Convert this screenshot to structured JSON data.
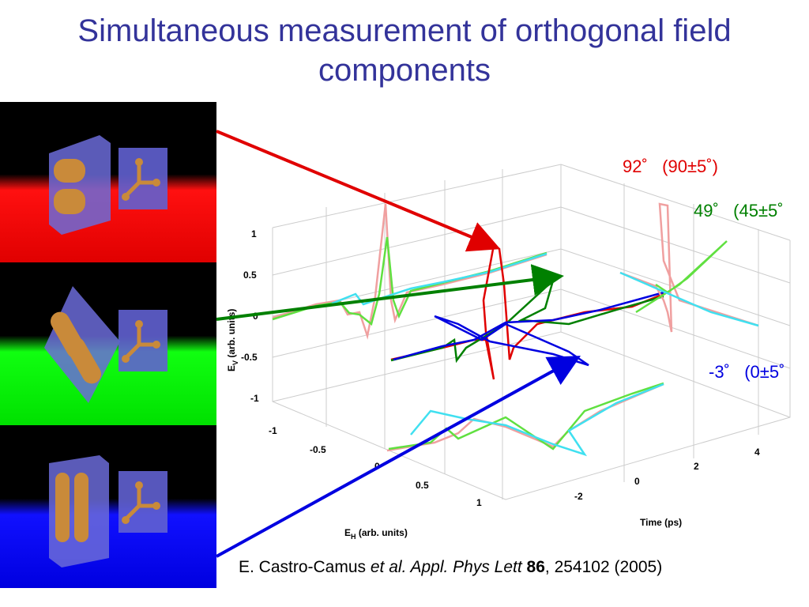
{
  "slide": {
    "title_line1": "Simultaneous measurement of orthogonal field",
    "title_line2": "components"
  },
  "annotations": {
    "red_measured": "92˚",
    "red_expected": "(90±5˚)",
    "green_measured": "49˚",
    "green_expected": "(45±5˚",
    "blue_measured": "-3˚",
    "blue_expected": "(0±5˚"
  },
  "plot": {
    "ylabel_main": "E",
    "ylabel_sub": "V",
    "ylabel_rest": " (arb. units)",
    "xlabel_main": "E",
    "xlabel_sub": "H",
    "xlabel_rest": " (arb. units)",
    "tlabel": "Time (ps)",
    "v_ticks": [
      "1",
      "0.5",
      "0",
      "-0.5",
      "-1"
    ],
    "h_ticks": [
      "-1",
      "-0.5",
      "0",
      "0.5",
      "1"
    ],
    "t_ticks": [
      "-2",
      "0",
      "2",
      "4"
    ]
  },
  "citation": {
    "author": "E. Castro-Camus ",
    "journal": "et al. Appl. Phys Lett ",
    "volume": "86",
    "rest": ", 254102 (2005)"
  },
  "colors": {
    "title": "#33339a",
    "red": "#e00000",
    "green": "#008000",
    "blue": "#0000e0",
    "trace_pink": "#f0a0a0",
    "trace_lightgreen": "#60e040",
    "trace_cyan": "#40e0f0"
  }
}
